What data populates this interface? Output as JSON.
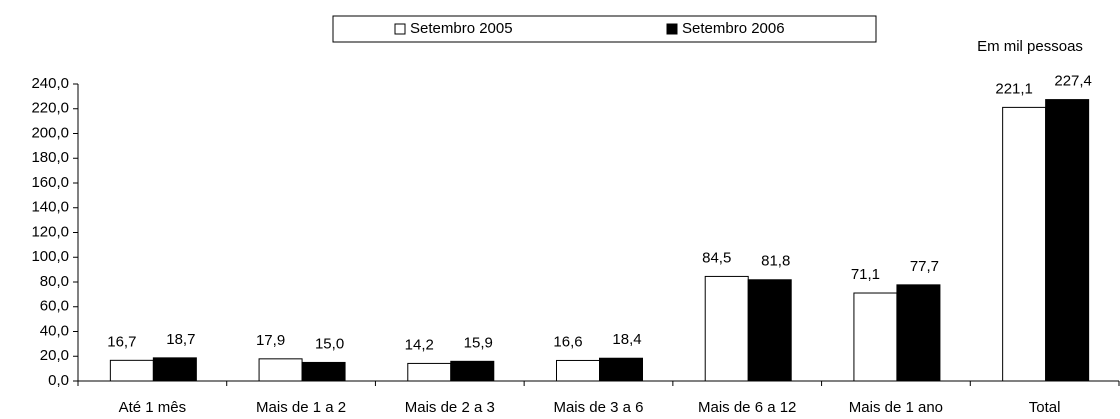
{
  "chart_data": {
    "type": "bar",
    "annotation": "Em mil pessoas",
    "categories": [
      "Até 1 mês",
      "Mais de 1 a 2",
      "Mais de 2 a 3",
      "Mais de 3 a 6",
      "Mais de 6 a 12",
      "Mais de 1 ano",
      "Total"
    ],
    "series": [
      {
        "name": "Setembro 2005",
        "color": "#ffffff",
        "values": [
          16.7,
          17.9,
          14.2,
          16.6,
          84.5,
          71.1,
          221.1
        ],
        "value_labels": [
          "16,7",
          "17,9",
          "14,2",
          "16,6",
          "84,5",
          "71,1",
          "221,1"
        ]
      },
      {
        "name": "Setembro 2006",
        "color": "#000000",
        "values": [
          18.7,
          15.0,
          15.9,
          18.4,
          81.8,
          77.7,
          227.4
        ],
        "value_labels": [
          "18,7",
          "15,0",
          "15,9",
          "18,4",
          "81,8",
          "77,7",
          "227,4"
        ]
      }
    ],
    "ylim": [
      0,
      240
    ],
    "yticks": [
      {
        "value": 0,
        "label": "0,0"
      },
      {
        "value": 20,
        "label": "20,0"
      },
      {
        "value": 40,
        "label": "40,0"
      },
      {
        "value": 60,
        "label": "60,0"
      },
      {
        "value": 80,
        "label": "80,0"
      },
      {
        "value": 100,
        "label": "100,0"
      },
      {
        "value": 120,
        "label": "120,0"
      },
      {
        "value": 140,
        "label": "140,0"
      },
      {
        "value": 160,
        "label": "160,0"
      },
      {
        "value": 180,
        "label": "180,0"
      },
      {
        "value": 200,
        "label": "200,0"
      },
      {
        "value": 220,
        "label": "220,0"
      },
      {
        "value": 240,
        "label": "240,0"
      }
    ],
    "grid": false,
    "legend": "top"
  }
}
